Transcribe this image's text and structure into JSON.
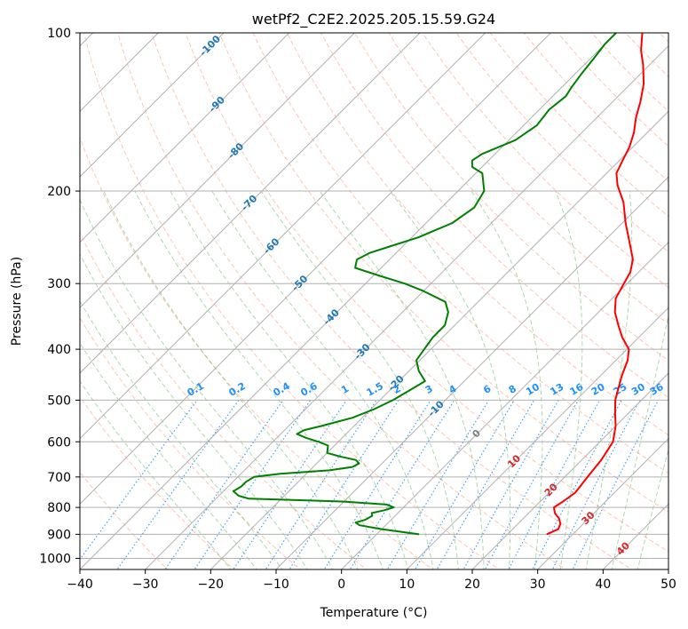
{
  "title": "wetPf2_C2E2.2025.205.15.59.G24",
  "xlabel": "Temperature (°C)",
  "ylabel": "Pressure (hPa)",
  "colors": {
    "temperature": "#ff0000",
    "dewpoint": "#008000",
    "isotherm_neg": "#1f77b4",
    "isotherm_pos": "#d62728",
    "isotherm_zero": "#808080",
    "mixing_ratio": "#1e90ff",
    "dry_adiabat": "#ff7f50",
    "moist_adiabat": "#2ca02c",
    "grid": "#b0b0b0"
  },
  "chart_data": {
    "type": "line",
    "x_axis": {
      "label": "Temperature (°C)",
      "range": [
        -40,
        50
      ],
      "ticks": [
        -40,
        -30,
        -20,
        -10,
        0,
        10,
        20,
        30,
        40,
        50
      ]
    },
    "y_axis": {
      "label": "Pressure (hPa)",
      "scale": "log",
      "inverted": true,
      "range": [
        1050,
        100
      ],
      "ticks": [
        100,
        200,
        300,
        400,
        500,
        600,
        700,
        800,
        900,
        1000
      ]
    },
    "grid": true,
    "isotherm_labels": [
      -100,
      -90,
      -80,
      -70,
      -60,
      -50,
      -40,
      -30,
      -20,
      -10,
      0,
      10,
      20,
      30,
      40
    ],
    "mixing_ratio_labels": [
      "0.1",
      "0.2",
      "0.4",
      "0.6",
      "1",
      "1.5",
      "2",
      "3",
      "4",
      "6",
      "8",
      "10",
      "13",
      "16",
      "20",
      "25",
      "30",
      "36"
    ],
    "series": [
      {
        "key": "temperature",
        "points": [
          [
            900,
            26
          ],
          [
            880,
            27
          ],
          [
            860,
            26.5
          ],
          [
            840,
            25.5
          ],
          [
            820,
            24
          ],
          [
            800,
            23
          ],
          [
            780,
            23.5
          ],
          [
            750,
            24
          ],
          [
            700,
            23.5
          ],
          [
            650,
            23
          ],
          [
            600,
            22
          ],
          [
            560,
            20
          ],
          [
            530,
            18
          ],
          [
            500,
            16
          ],
          [
            450,
            13.3
          ],
          [
            420,
            11.8
          ],
          [
            400,
            10.3
          ],
          [
            380,
            7.5
          ],
          [
            360,
            5
          ],
          [
            340,
            2.5
          ],
          [
            320,
            0.5
          ],
          [
            300,
            -0.5
          ],
          [
            285,
            -1.3
          ],
          [
            270,
            -2.8
          ],
          [
            250,
            -6
          ],
          [
            230,
            -9.5
          ],
          [
            210,
            -13
          ],
          [
            195,
            -16.5
          ],
          [
            185,
            -18.5
          ],
          [
            175,
            -19.5
          ],
          [
            165,
            -20.5
          ],
          [
            155,
            -22
          ],
          [
            145,
            -24
          ],
          [
            135,
            -25.8
          ],
          [
            125,
            -28
          ],
          [
            115,
            -31
          ],
          [
            108,
            -33.5
          ],
          [
            100,
            -36
          ]
        ]
      },
      {
        "key": "dewpoint",
        "points": [
          [
            900,
            6.5
          ],
          [
            880,
            0
          ],
          [
            865,
            -4
          ],
          [
            855,
            -5
          ],
          [
            845,
            -4
          ],
          [
            830,
            -3.5
          ],
          [
            820,
            -4
          ],
          [
            810,
            -2.5
          ],
          [
            800,
            -1.5
          ],
          [
            790,
            -3
          ],
          [
            780,
            -10
          ],
          [
            770,
            -25
          ],
          [
            760,
            -27
          ],
          [
            745,
            -28.5
          ],
          [
            730,
            -28
          ],
          [
            715,
            -28
          ],
          [
            700,
            -27.5
          ],
          [
            690,
            -24
          ],
          [
            680,
            -17
          ],
          [
            670,
            -14
          ],
          [
            660,
            -13.5
          ],
          [
            650,
            -14.5
          ],
          [
            640,
            -17.5
          ],
          [
            630,
            -20
          ],
          [
            620,
            -20.5
          ],
          [
            610,
            -21
          ],
          [
            600,
            -23
          ],
          [
            590,
            -25.5
          ],
          [
            580,
            -27.5
          ],
          [
            570,
            -27
          ],
          [
            560,
            -25
          ],
          [
            540,
            -21.5
          ],
          [
            520,
            -19.5
          ],
          [
            500,
            -18
          ],
          [
            480,
            -17
          ],
          [
            460,
            -16
          ],
          [
            440,
            -18.5
          ],
          [
            420,
            -20.5
          ],
          [
            400,
            -21
          ],
          [
            380,
            -21.5
          ],
          [
            360,
            -21.5
          ],
          [
            340,
            -23
          ],
          [
            325,
            -25
          ],
          [
            310,
            -30
          ],
          [
            300,
            -34
          ],
          [
            290,
            -39
          ],
          [
            280,
            -44
          ],
          [
            270,
            -45
          ],
          [
            262,
            -44
          ],
          [
            255,
            -42
          ],
          [
            245,
            -39
          ],
          [
            230,
            -36
          ],
          [
            215,
            -35
          ],
          [
            200,
            -36
          ],
          [
            185,
            -39
          ],
          [
            180,
            -41.5
          ],
          [
            175,
            -42.5
          ],
          [
            170,
            -42
          ],
          [
            160,
            -39
          ],
          [
            150,
            -38
          ],
          [
            140,
            -38.5
          ],
          [
            132,
            -38
          ],
          [
            127,
            -38.5
          ],
          [
            120,
            -39
          ],
          [
            112,
            -39.5
          ],
          [
            105,
            -40
          ],
          [
            100,
            -40
          ]
        ]
      }
    ]
  }
}
